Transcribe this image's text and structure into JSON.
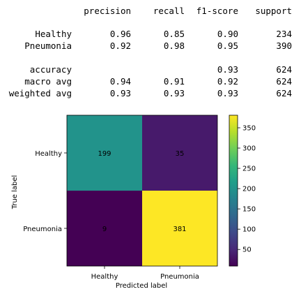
{
  "report": {
    "headers": [
      "precision",
      "recall",
      "f1-score",
      "support"
    ],
    "rows": [
      {
        "label": "Healthy",
        "precision": "0.96",
        "recall": "0.85",
        "f1": "0.90",
        "support": "234"
      },
      {
        "label": "Pneumonia",
        "precision": "0.92",
        "recall": "0.98",
        "f1": "0.95",
        "support": "390"
      }
    ],
    "summary": [
      {
        "label": "accuracy",
        "precision": "",
        "recall": "",
        "f1": "0.93",
        "support": "624"
      },
      {
        "label": "macro avg",
        "precision": "0.94",
        "recall": "0.91",
        "f1": "0.92",
        "support": "624"
      },
      {
        "label": "weighted avg",
        "precision": "0.93",
        "recall": "0.93",
        "f1": "0.93",
        "support": "624"
      }
    ]
  },
  "chart_data": {
    "type": "heatmap",
    "title": "",
    "xlabel": "Predicted label",
    "ylabel": "True label",
    "x_categories": [
      "Healthy",
      "Pneumonia"
    ],
    "y_categories": [
      "Healthy",
      "Pneumonia"
    ],
    "values": [
      [
        199,
        35
      ],
      [
        9,
        381
      ]
    ],
    "colormap": "viridis",
    "colorbar": {
      "min": 9,
      "max": 381,
      "ticks": [
        50,
        100,
        150,
        200,
        250,
        300,
        350
      ]
    },
    "text_colors": {
      "dark_cell_text": "#fde725",
      "light_cell_text": "#440154"
    }
  }
}
